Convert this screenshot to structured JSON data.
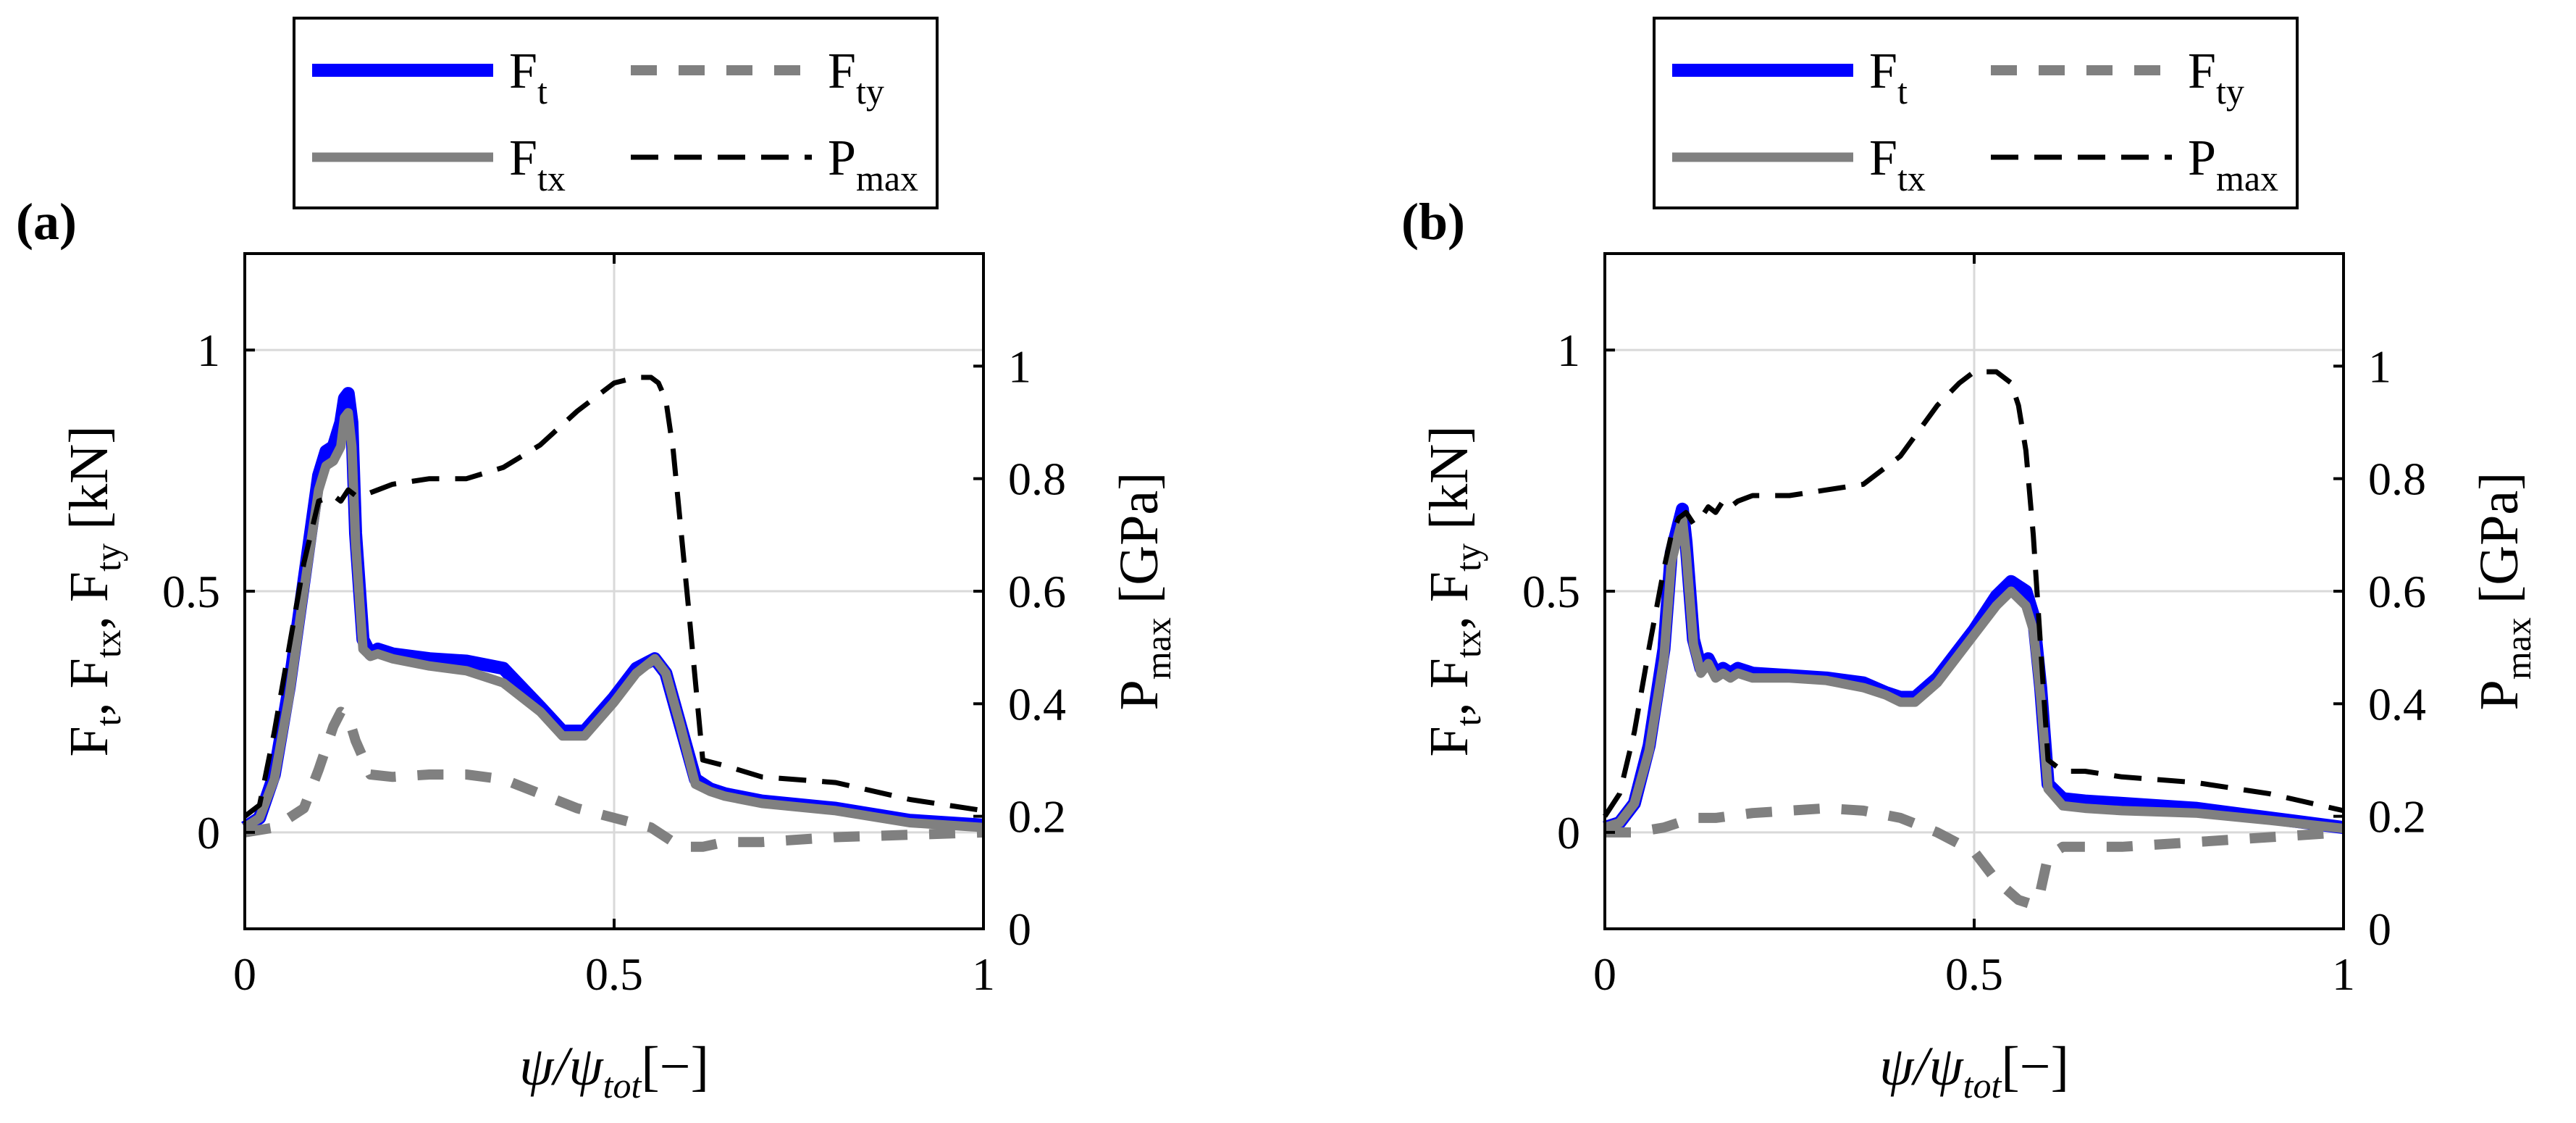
{
  "chart_data": [
    {
      "type": "line",
      "panel_label": "(a)",
      "xlabel": {
        "main": "ψ/ψ",
        "sub": "tot",
        "tail": "[−]"
      },
      "ylabel": "F_t, F_tx, F_ty [kN]",
      "y2label": "P_max [GPa]",
      "xlim": [
        0,
        1
      ],
      "ylim": [
        -0.2,
        1.2
      ],
      "y2lim": [
        0,
        1.2
      ],
      "xticks": [
        "0",
        "0.5",
        "1"
      ],
      "yticks": [
        "0",
        "0.5",
        "1"
      ],
      "y2ticks": [
        "0",
        "0.2",
        "0.4",
        "0.6",
        "0.8",
        "1"
      ],
      "grid": true,
      "legend": {
        "placement": "top",
        "entries": [
          {
            "name": "F",
            "sub": "t",
            "color": "#0000ff",
            "style": "solid"
          },
          {
            "name": "F",
            "sub": "ty",
            "color": "#808080",
            "style": "dashed"
          },
          {
            "name": "F",
            "sub": "tx",
            "color": "#808080",
            "style": "solid"
          },
          {
            "name": "P",
            "sub": "max",
            "color": "#000000",
            "style": "dashed"
          }
        ]
      },
      "series": [
        {
          "name": "Ft",
          "axis": "left",
          "color": "#0000ff",
          "style": "solid",
          "x": [
            0,
            0.02,
            0.04,
            0.06,
            0.08,
            0.1,
            0.11,
            0.12,
            0.13,
            0.135,
            0.14,
            0.145,
            0.15,
            0.16,
            0.17,
            0.18,
            0.2,
            0.25,
            0.3,
            0.35,
            0.4,
            0.43,
            0.46,
            0.5,
            0.53,
            0.555,
            0.57,
            0.59,
            0.61,
            0.63,
            0.65,
            0.7,
            0.8,
            0.9,
            1.0
          ],
          "y": [
            0.01,
            0.03,
            0.12,
            0.3,
            0.52,
            0.74,
            0.79,
            0.8,
            0.85,
            0.9,
            0.91,
            0.85,
            0.62,
            0.4,
            0.37,
            0.38,
            0.37,
            0.36,
            0.355,
            0.34,
            0.26,
            0.21,
            0.21,
            0.28,
            0.34,
            0.36,
            0.33,
            0.22,
            0.11,
            0.09,
            0.08,
            0.065,
            0.05,
            0.025,
            0.015
          ]
        },
        {
          "name": "Ftx",
          "axis": "left",
          "color": "#808080",
          "style": "solid",
          "x": [
            0,
            0.02,
            0.04,
            0.06,
            0.08,
            0.1,
            0.11,
            0.12,
            0.13,
            0.135,
            0.14,
            0.145,
            0.15,
            0.16,
            0.17,
            0.18,
            0.2,
            0.25,
            0.3,
            0.35,
            0.4,
            0.43,
            0.46,
            0.5,
            0.53,
            0.555,
            0.57,
            0.59,
            0.61,
            0.63,
            0.65,
            0.7,
            0.8,
            0.9,
            1.0
          ],
          "y": [
            0.01,
            0.03,
            0.11,
            0.28,
            0.5,
            0.71,
            0.76,
            0.77,
            0.8,
            0.86,
            0.87,
            0.8,
            0.6,
            0.38,
            0.365,
            0.37,
            0.36,
            0.345,
            0.335,
            0.31,
            0.25,
            0.2,
            0.2,
            0.27,
            0.33,
            0.36,
            0.33,
            0.22,
            0.1,
            0.085,
            0.075,
            0.06,
            0.045,
            0.02,
            0.01
          ]
        },
        {
          "name": "Fty",
          "axis": "left",
          "color": "#808080",
          "style": "dashed",
          "x": [
            0,
            0.04,
            0.08,
            0.1,
            0.12,
            0.13,
            0.14,
            0.15,
            0.17,
            0.2,
            0.25,
            0.3,
            0.35,
            0.4,
            0.45,
            0.5,
            0.55,
            0.58,
            0.6,
            0.62,
            0.65,
            0.7,
            0.8,
            0.9,
            1.0
          ],
          "y": [
            0.0,
            0.01,
            0.05,
            0.13,
            0.22,
            0.25,
            0.24,
            0.19,
            0.12,
            0.115,
            0.12,
            0.12,
            0.11,
            0.08,
            0.05,
            0.03,
            0.01,
            -0.02,
            -0.03,
            -0.03,
            -0.02,
            -0.02,
            -0.01,
            -0.005,
            0.0
          ]
        },
        {
          "name": "Pmax",
          "axis": "right",
          "color": "#000000",
          "style": "dashed",
          "x": [
            0,
            0.02,
            0.04,
            0.06,
            0.08,
            0.1,
            0.12,
            0.13,
            0.14,
            0.15,
            0.16,
            0.18,
            0.2,
            0.25,
            0.3,
            0.35,
            0.4,
            0.45,
            0.48,
            0.5,
            0.53,
            0.55,
            0.56,
            0.57,
            0.58,
            0.6,
            0.62,
            0.65,
            0.7,
            0.8,
            0.9,
            1.0
          ],
          "y": [
            0.2,
            0.22,
            0.35,
            0.5,
            0.65,
            0.76,
            0.77,
            0.76,
            0.78,
            0.77,
            0.77,
            0.78,
            0.79,
            0.8,
            0.8,
            0.82,
            0.86,
            0.92,
            0.95,
            0.97,
            0.98,
            0.98,
            0.97,
            0.94,
            0.85,
            0.58,
            0.3,
            0.29,
            0.27,
            0.26,
            0.23,
            0.21
          ]
        }
      ]
    },
    {
      "type": "line",
      "panel_label": "(b)",
      "xlabel": {
        "main": "ψ/ψ",
        "sub": "tot",
        "tail": "[−]"
      },
      "ylabel": "F_t, F_tx, F_ty [kN]",
      "y2label": "P_max [GPa]",
      "xlim": [
        0,
        1
      ],
      "ylim": [
        -0.2,
        1.2
      ],
      "y2lim": [
        0,
        1.2
      ],
      "xticks": [
        "0",
        "0.5",
        "1"
      ],
      "yticks": [
        "0",
        "0.5",
        "1"
      ],
      "y2ticks": [
        "0",
        "0.2",
        "0.4",
        "0.6",
        "0.8",
        "1"
      ],
      "grid": true,
      "legend": {
        "placement": "top",
        "entries": [
          {
            "name": "F",
            "sub": "t",
            "color": "#0000ff",
            "style": "solid"
          },
          {
            "name": "F",
            "sub": "ty",
            "color": "#808080",
            "style": "dashed"
          },
          {
            "name": "F",
            "sub": "tx",
            "color": "#808080",
            "style": "solid"
          },
          {
            "name": "P",
            "sub": "max",
            "color": "#000000",
            "style": "dashed"
          }
        ]
      },
      "series": [
        {
          "name": "Ft",
          "axis": "left",
          "color": "#0000ff",
          "style": "solid",
          "x": [
            0,
            0.02,
            0.04,
            0.06,
            0.08,
            0.09,
            0.1,
            0.105,
            0.11,
            0.12,
            0.13,
            0.14,
            0.15,
            0.16,
            0.17,
            0.18,
            0.2,
            0.25,
            0.3,
            0.35,
            0.38,
            0.4,
            0.42,
            0.45,
            0.5,
            0.53,
            0.55,
            0.57,
            0.58,
            0.59,
            0.6,
            0.62,
            0.65,
            0.7,
            0.8,
            0.9,
            1.0
          ],
          "y": [
            0.01,
            0.02,
            0.06,
            0.18,
            0.38,
            0.58,
            0.64,
            0.67,
            0.6,
            0.4,
            0.34,
            0.36,
            0.33,
            0.34,
            0.33,
            0.34,
            0.33,
            0.325,
            0.32,
            0.31,
            0.29,
            0.28,
            0.28,
            0.32,
            0.42,
            0.49,
            0.52,
            0.5,
            0.45,
            0.3,
            0.1,
            0.07,
            0.065,
            0.06,
            0.05,
            0.03,
            0.01
          ]
        },
        {
          "name": "Ftx",
          "axis": "left",
          "color": "#808080",
          "style": "solid",
          "x": [
            0,
            0.02,
            0.04,
            0.06,
            0.08,
            0.09,
            0.1,
            0.105,
            0.11,
            0.12,
            0.13,
            0.14,
            0.15,
            0.16,
            0.17,
            0.18,
            0.2,
            0.25,
            0.3,
            0.35,
            0.38,
            0.4,
            0.42,
            0.45,
            0.5,
            0.53,
            0.55,
            0.57,
            0.58,
            0.59,
            0.6,
            0.62,
            0.65,
            0.7,
            0.8,
            0.9,
            1.0
          ],
          "y": [
            0.01,
            0.02,
            0.06,
            0.17,
            0.36,
            0.56,
            0.62,
            0.65,
            0.58,
            0.39,
            0.33,
            0.35,
            0.32,
            0.33,
            0.32,
            0.33,
            0.32,
            0.32,
            0.315,
            0.3,
            0.285,
            0.27,
            0.27,
            0.31,
            0.41,
            0.47,
            0.5,
            0.47,
            0.42,
            0.28,
            0.09,
            0.055,
            0.05,
            0.045,
            0.04,
            0.025,
            0.008
          ]
        },
        {
          "name": "Fty",
          "axis": "left",
          "color": "#808080",
          "style": "dashed",
          "x": [
            0,
            0.04,
            0.08,
            0.1,
            0.12,
            0.15,
            0.2,
            0.25,
            0.3,
            0.35,
            0.4,
            0.45,
            0.5,
            0.53,
            0.56,
            0.58,
            0.59,
            0.6,
            0.62,
            0.65,
            0.7,
            0.8,
            0.9,
            1.0
          ],
          "y": [
            0.0,
            0.0,
            0.01,
            0.02,
            0.03,
            0.03,
            0.04,
            0.045,
            0.05,
            0.045,
            0.03,
            0.0,
            -0.04,
            -0.1,
            -0.14,
            -0.15,
            -0.12,
            -0.05,
            -0.03,
            -0.03,
            -0.03,
            -0.02,
            -0.01,
            0.0
          ]
        },
        {
          "name": "Pmax",
          "axis": "right",
          "color": "#000000",
          "style": "dashed",
          "x": [
            0,
            0.02,
            0.04,
            0.06,
            0.08,
            0.09,
            0.1,
            0.11,
            0.12,
            0.13,
            0.14,
            0.15,
            0.16,
            0.17,
            0.18,
            0.2,
            0.25,
            0.3,
            0.35,
            0.4,
            0.45,
            0.48,
            0.5,
            0.53,
            0.55,
            0.56,
            0.57,
            0.58,
            0.59,
            0.6,
            0.62,
            0.65,
            0.7,
            0.8,
            0.9,
            1.0
          ],
          "y": [
            0.2,
            0.24,
            0.35,
            0.5,
            0.64,
            0.7,
            0.73,
            0.74,
            0.72,
            0.73,
            0.75,
            0.74,
            0.76,
            0.75,
            0.76,
            0.77,
            0.77,
            0.78,
            0.79,
            0.84,
            0.93,
            0.97,
            0.99,
            0.99,
            0.97,
            0.93,
            0.85,
            0.7,
            0.5,
            0.3,
            0.28,
            0.28,
            0.27,
            0.26,
            0.24,
            0.21
          ]
        }
      ]
    }
  ]
}
